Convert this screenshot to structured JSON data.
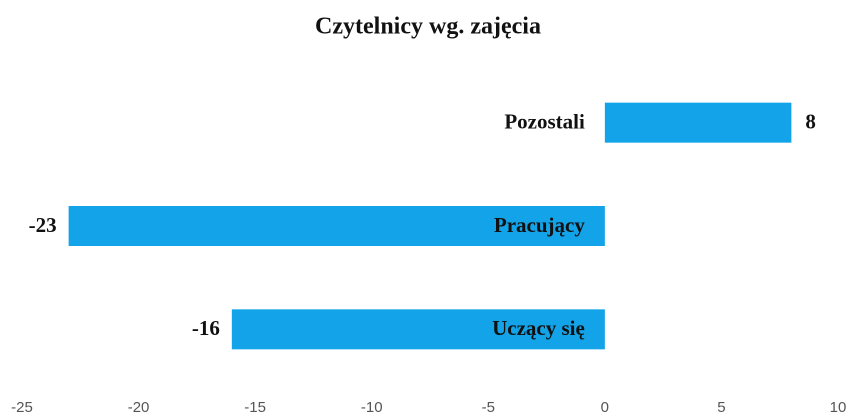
{
  "chart_data": {
    "type": "bar",
    "orientation": "horizontal",
    "title": "Czytelnicy wg. zajęcia",
    "categories": [
      "Pozostali",
      "Pracujący",
      "Uczący się"
    ],
    "values": [
      8,
      -23,
      -16
    ],
    "color": "#13a3e8",
    "xlim": [
      -25,
      10
    ],
    "xticks": [
      -25,
      -20,
      -15,
      -10,
      -5,
      0,
      5,
      10
    ]
  }
}
